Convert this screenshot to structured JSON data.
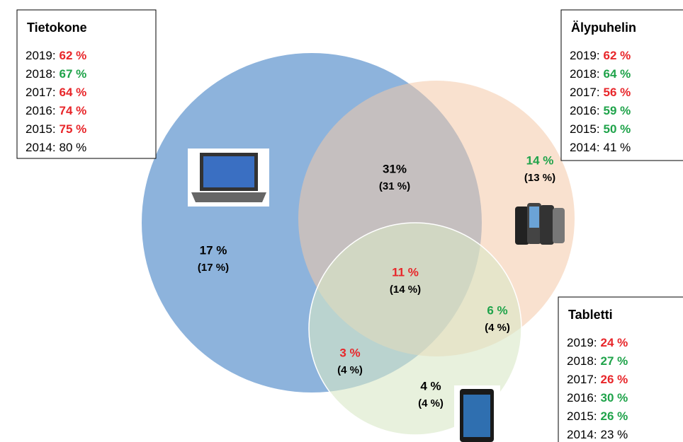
{
  "boxes": [
    {
      "title": "Tietokone",
      "rows": [
        {
          "year": "2019:",
          "value": "62 %",
          "color": "#e8262a",
          "bold": true
        },
        {
          "year": "2018:",
          "value": "67 %",
          "color": "#1fa34a",
          "bold": true
        },
        {
          "year": "2017:",
          "value": "64 %",
          "color": "#e8262a",
          "bold": true
        },
        {
          "year": "2016:",
          "value": "74 %",
          "color": "#e8262a",
          "bold": true
        },
        {
          "year": "2015:",
          "value": "75 %",
          "color": "#e8262a",
          "bold": true
        },
        {
          "year": "2014:",
          "value": "80 %",
          "color": "#000000",
          "bold": false
        }
      ]
    },
    {
      "title": "Älypuhelin",
      "rows": [
        {
          "year": "2019:",
          "value": "62 %",
          "color": "#e8262a",
          "bold": true
        },
        {
          "year": "2018:",
          "value": "64 %",
          "color": "#1fa34a",
          "bold": true
        },
        {
          "year": "2017:",
          "value": "56 %",
          "color": "#e8262a",
          "bold": true
        },
        {
          "year": "2016:",
          "value": "59 %",
          "color": "#1fa34a",
          "bold": true
        },
        {
          "year": "2015:",
          "value": "50 %",
          "color": "#1fa34a",
          "bold": true
        },
        {
          "year": "2014:",
          "value": "41 %",
          "color": "#000000",
          "bold": false
        }
      ]
    },
    {
      "title": "Tabletti",
      "rows": [
        {
          "year": "2019:",
          "value": "24 %",
          "color": "#e8262a",
          "bold": true
        },
        {
          "year": "2018:",
          "value": "27 %",
          "color": "#1fa34a",
          "bold": true
        },
        {
          "year": "2017:",
          "value": "26 %",
          "color": "#e8262a",
          "bold": true
        },
        {
          "year": "2016:",
          "value": "30 %",
          "color": "#1fa34a",
          "bold": true
        },
        {
          "year": "2015:",
          "value": "26 %",
          "color": "#1fa34a",
          "bold": true
        },
        {
          "year": "2014:",
          "value": "23 %",
          "color": "#000000",
          "bold": false
        }
      ]
    }
  ],
  "regions": [
    {
      "current": "31%",
      "previous": "(31 %)",
      "color": "#000000"
    },
    {
      "current": "14 %",
      "previous": "(13 %)",
      "color": "#1fa34a"
    },
    {
      "current": "17 %",
      "previous": "(17 %)",
      "color": "#000000"
    },
    {
      "current": "11 %",
      "previous": "(14 %)",
      "color": "#e8262a"
    },
    {
      "current": "6 %",
      "previous": "(4 %)",
      "color": "#1fa34a"
    },
    {
      "current": "3 %",
      "previous": "(4 %)",
      "color": "#e8262a"
    },
    {
      "current": "4 %",
      "previous": "(4 %)",
      "color": "#000000"
    }
  ]
}
